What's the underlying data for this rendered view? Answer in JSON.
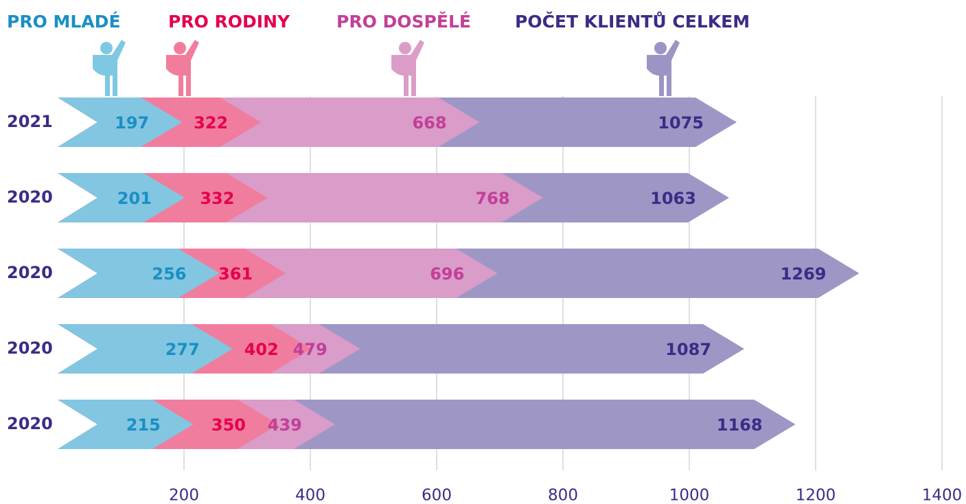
{
  "chart_data": {
    "type": "bar",
    "orientation": "horizontal",
    "categories": [
      "2021",
      "2020",
      "2020",
      "2020",
      "2020"
    ],
    "series": [
      {
        "name": "PRO MLADÉ",
        "color": "#7ec8e3",
        "label_color": "#1a8fc4",
        "values": [
          197,
          201,
          256,
          277,
          215
        ]
      },
      {
        "name": "PRO RODINY",
        "color": "#f27c9c",
        "label_color": "#e5004f",
        "values": [
          322,
          332,
          361,
          402,
          350
        ]
      },
      {
        "name": "PRO DOSPĚLÉ",
        "color": "#dc9cc8",
        "label_color": "#c23f98",
        "values": [
          668,
          768,
          696,
          479,
          439
        ]
      },
      {
        "name": "POČET KLIENTŮ CELKEM",
        "color": "#9b94c4",
        "label_color": "#3b2c86",
        "values": [
          1075,
          1063,
          1269,
          1087,
          1168
        ]
      }
    ],
    "xlim": [
      0,
      1400
    ],
    "xticks": [
      200,
      400,
      600,
      800,
      1000,
      1200,
      1400
    ],
    "grid": true
  }
}
